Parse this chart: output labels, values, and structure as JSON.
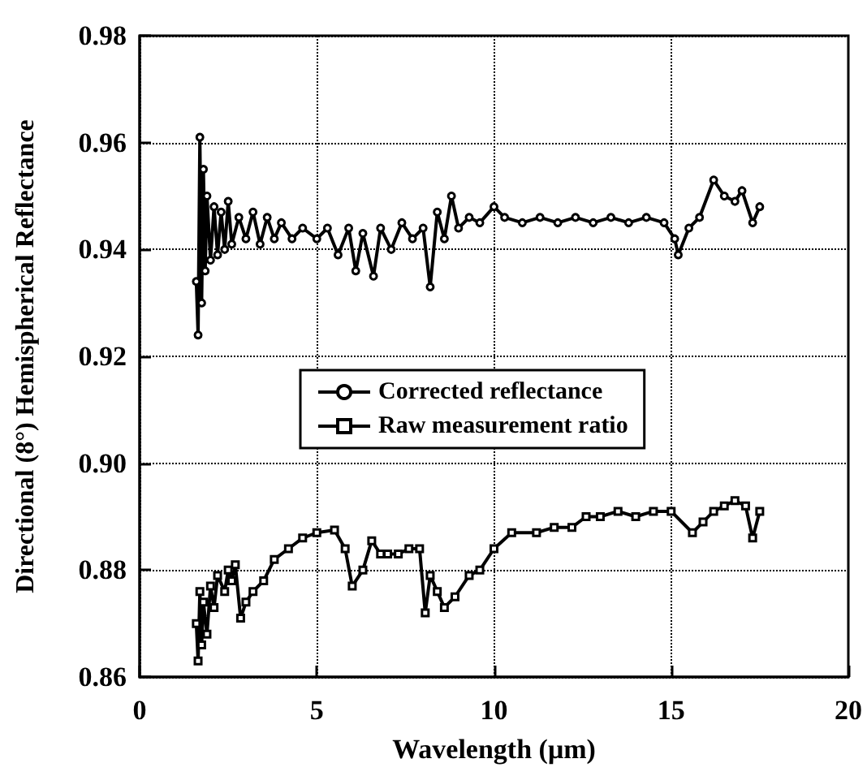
{
  "chart_data": {
    "type": "line",
    "xlabel": "Wavelength (μm)",
    "ylabel": "Directional (8°) Hemispherical Reflectance",
    "xlim": [
      0,
      20
    ],
    "xticks": [
      0,
      5,
      10,
      15,
      20
    ],
    "ylim": [
      0.86,
      0.98
    ],
    "yticks": [
      0.86,
      0.88,
      {
        "value": 0.9,
        "label": "0.90"
      },
      0.92,
      0.94,
      0.96,
      0.98
    ],
    "grid": true,
    "legend": "center",
    "series": [
      {
        "name": "Corrected reflectance",
        "color": "#000000",
        "marker": "circle",
        "x": [
          1.6,
          1.65,
          1.7,
          1.75,
          1.8,
          1.85,
          1.9,
          2.0,
          2.1,
          2.2,
          2.3,
          2.4,
          2.5,
          2.6,
          2.8,
          3.0,
          3.2,
          3.4,
          3.6,
          3.8,
          4.0,
          4.3,
          4.6,
          5.0,
          5.3,
          5.6,
          5.9,
          6.1,
          6.3,
          6.6,
          6.8,
          7.1,
          7.4,
          7.7,
          8.0,
          8.2,
          8.4,
          8.6,
          8.8,
          9.0,
          9.3,
          9.6,
          10.0,
          10.3,
          10.8,
          11.3,
          11.8,
          12.3,
          12.8,
          13.3,
          13.8,
          14.3,
          14.8,
          15.1,
          15.2,
          15.5,
          15.8,
          16.2,
          16.5,
          16.8,
          17.0,
          17.3,
          17.5
        ],
        "values": [
          0.934,
          0.924,
          0.961,
          0.93,
          0.955,
          0.936,
          0.95,
          0.938,
          0.948,
          0.939,
          0.947,
          0.94,
          0.949,
          0.941,
          0.946,
          0.942,
          0.947,
          0.941,
          0.946,
          0.942,
          0.945,
          0.942,
          0.944,
          0.942,
          0.944,
          0.939,
          0.944,
          0.936,
          0.943,
          0.935,
          0.944,
          0.94,
          0.945,
          0.942,
          0.944,
          0.933,
          0.947,
          0.942,
          0.95,
          0.944,
          0.946,
          0.945,
          0.948,
          0.946,
          0.945,
          0.946,
          0.945,
          0.946,
          0.945,
          0.946,
          0.945,
          0.946,
          0.945,
          0.942,
          0.939,
          0.944,
          0.946,
          0.953,
          0.95,
          0.949,
          0.951,
          0.945,
          0.948
        ]
      },
      {
        "name": "Raw measurement ratio",
        "color": "#000000",
        "marker": "square",
        "x": [
          1.6,
          1.65,
          1.7,
          1.75,
          1.8,
          1.9,
          2.0,
          2.1,
          2.2,
          2.4,
          2.5,
          2.6,
          2.7,
          2.85,
          3.0,
          3.2,
          3.5,
          3.8,
          4.2,
          4.6,
          5.0,
          5.5,
          5.8,
          6.0,
          6.3,
          6.55,
          6.8,
          7.0,
          7.3,
          7.6,
          7.9,
          8.06,
          8.2,
          8.4,
          8.6,
          8.9,
          9.3,
          9.6,
          10.0,
          10.5,
          11.2,
          11.7,
          12.2,
          12.6,
          13.0,
          13.5,
          14.0,
          14.5,
          15.0,
          15.6,
          15.9,
          16.2,
          16.5,
          16.8,
          17.1,
          17.3,
          17.5
        ],
        "values": [
          0.87,
          0.863,
          0.876,
          0.866,
          0.874,
          0.868,
          0.877,
          0.873,
          0.879,
          0.876,
          0.88,
          0.878,
          0.881,
          0.871,
          0.874,
          0.876,
          0.878,
          0.882,
          0.884,
          0.886,
          0.887,
          0.8875,
          0.884,
          0.877,
          0.88,
          0.8855,
          0.883,
          0.883,
          0.883,
          0.884,
          0.884,
          0.872,
          0.879,
          0.876,
          0.873,
          0.875,
          0.879,
          0.88,
          0.884,
          0.887,
          0.887,
          0.888,
          0.888,
          0.89,
          0.89,
          0.891,
          0.89,
          0.891,
          0.891,
          0.887,
          0.889,
          0.891,
          0.892,
          0.893,
          0.892,
          0.886,
          0.891
        ]
      }
    ]
  }
}
